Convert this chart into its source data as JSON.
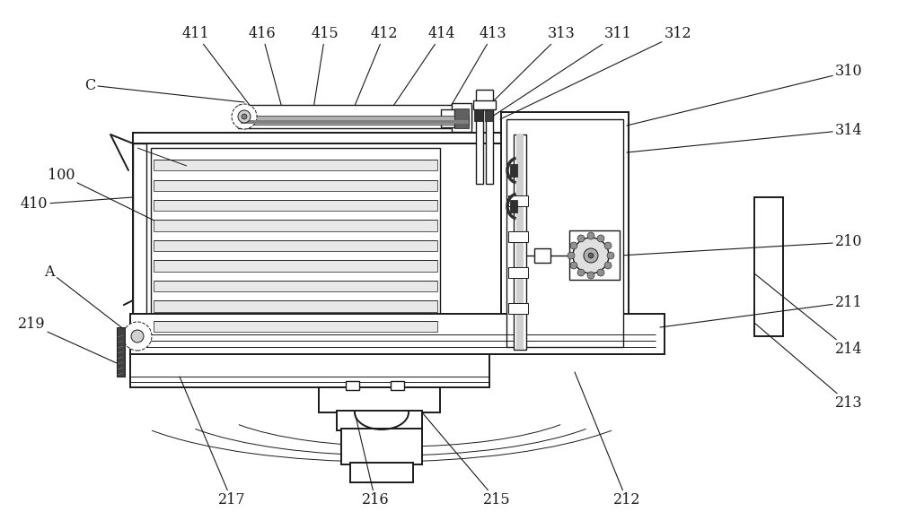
{
  "bg_color": "#ffffff",
  "line_color": "#1a1a1a",
  "fig_width": 10.0,
  "fig_height": 5.9,
  "lw_main": 1.4,
  "lw_med": 1.0,
  "lw_thin": 0.7,
  "font_size": 11.5
}
